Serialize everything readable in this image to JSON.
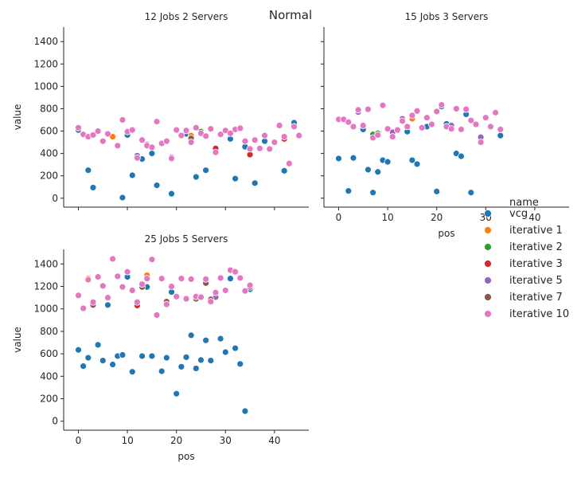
{
  "figure": {
    "suptitle": "Normal"
  },
  "legend": {
    "title": "name",
    "entries": [
      {
        "name": "vcg",
        "color": "#1f77b4"
      },
      {
        "name": "iterative 1",
        "color": "#ff7f0e"
      },
      {
        "name": "iterative 2",
        "color": "#2ca02c"
      },
      {
        "name": "iterative 3",
        "color": "#d62728"
      },
      {
        "name": "iterative 5",
        "color": "#9467bd"
      },
      {
        "name": "iterative 7",
        "color": "#8c564b"
      },
      {
        "name": "iterative 10",
        "color": "#e377c2"
      }
    ]
  },
  "chart_data": [
    {
      "type": "scatter",
      "title": "12 Jobs 2 Servers",
      "xlabel": "",
      "ylabel": "value",
      "xlim": [
        -3,
        47
      ],
      "ylim": [
        -80,
        1530
      ],
      "xticks": [
        0,
        10,
        20,
        30,
        40
      ],
      "yticks": [
        0,
        200,
        400,
        600,
        800,
        1000,
        1200,
        1400
      ],
      "show_xticklabels": false,
      "show_yticklabels": true,
      "series": [
        {
          "name": "vcg",
          "x": [
            0,
            2,
            3,
            9,
            10,
            11,
            13,
            15,
            16,
            19,
            22,
            24,
            26,
            31,
            32,
            34,
            36,
            38,
            42,
            44
          ],
          "y": [
            610,
            250,
            95,
            5,
            565,
            205,
            350,
            400,
            115,
            40,
            575,
            190,
            250,
            530,
            175,
            460,
            135,
            510,
            245,
            675
          ]
        },
        {
          "name": "iterative 1",
          "x": [
            7,
            23
          ],
          "y": [
            550,
            560
          ]
        },
        {
          "name": "iterative 2",
          "x": [
            25
          ],
          "y": [
            595
          ]
        },
        {
          "name": "iterative 3",
          "x": [
            28,
            35,
            42
          ],
          "y": [
            445,
            390,
            530
          ]
        },
        {
          "name": "iterative 5",
          "x": [
            12,
            14,
            19,
            37
          ],
          "y": [
            380,
            480,
            365,
            440
          ]
        },
        {
          "name": "iterative 7",
          "x": [
            23
          ],
          "y": [
            535
          ]
        },
        {
          "name": "iterative 10",
          "x": [
            0,
            1,
            2,
            3,
            4,
            5,
            6,
            8,
            9,
            10,
            11,
            12,
            13,
            14,
            15,
            16,
            17,
            18,
            19,
            20,
            21,
            22,
            23,
            24,
            25,
            26,
            27,
            28,
            29,
            30,
            31,
            32,
            33,
            34,
            35,
            36,
            37,
            38,
            39,
            40,
            41,
            42,
            43,
            44,
            45
          ],
          "y": [
            630,
            570,
            550,
            565,
            600,
            510,
            575,
            470,
            700,
            595,
            610,
            360,
            520,
            470,
            455,
            685,
            490,
            510,
            355,
            610,
            560,
            605,
            500,
            630,
            580,
            555,
            620,
            410,
            570,
            605,
            580,
            615,
            625,
            510,
            440,
            520,
            445,
            560,
            440,
            500,
            650,
            550,
            310,
            640,
            560
          ]
        }
      ]
    },
    {
      "type": "scatter",
      "title": "15 Jobs 3 Servers",
      "xlabel": "pos",
      "ylabel": "",
      "xlim": [
        -3,
        47
      ],
      "ylim": [
        -80,
        1530
      ],
      "xticks": [
        0,
        10,
        20,
        30,
        40
      ],
      "yticks": [
        0,
        200,
        400,
        600,
        800,
        1000,
        1200,
        1400
      ],
      "show_xticklabels": true,
      "show_yticklabels": false,
      "series": [
        {
          "name": "vcg",
          "x": [
            0,
            2,
            3,
            5,
            6,
            7,
            8,
            9,
            10,
            14,
            15,
            16,
            18,
            20,
            21,
            22,
            24,
            25,
            26,
            27,
            29,
            33
          ],
          "y": [
            355,
            65,
            360,
            615,
            255,
            50,
            235,
            340,
            325,
            595,
            340,
            305,
            640,
            60,
            820,
            665,
            400,
            375,
            750,
            50,
            530,
            560
          ]
        },
        {
          "name": "iterative 1",
          "x": [
            15
          ],
          "y": [
            710
          ]
        },
        {
          "name": "iterative 2",
          "x": [
            7,
            8
          ],
          "y": [
            570,
            580
          ]
        },
        {
          "name": "iterative 5",
          "x": [
            4,
            11,
            13,
            23,
            29
          ],
          "y": [
            770,
            590,
            710,
            650,
            545
          ]
        },
        {
          "name": "iterative 10",
          "x": [
            0,
            1,
            2,
            3,
            4,
            5,
            6,
            7,
            8,
            9,
            10,
            11,
            12,
            13,
            14,
            15,
            16,
            17,
            18,
            19,
            20,
            21,
            22,
            23,
            24,
            25,
            26,
            27,
            28,
            29,
            30,
            31,
            32,
            33
          ],
          "y": [
            705,
            705,
            680,
            640,
            790,
            650,
            795,
            540,
            565,
            830,
            620,
            550,
            610,
            690,
            640,
            740,
            780,
            630,
            720,
            660,
            775,
            835,
            640,
            620,
            800,
            615,
            795,
            695,
            660,
            500,
            720,
            640,
            765,
            615
          ]
        }
      ]
    },
    {
      "type": "scatter",
      "title": "25 Jobs 5 Servers",
      "xlabel": "pos",
      "ylabel": "value",
      "xlim": [
        -3,
        47
      ],
      "ylim": [
        -80,
        1530
      ],
      "xticks": [
        0,
        10,
        20,
        30,
        40
      ],
      "yticks": [
        0,
        200,
        400,
        600,
        800,
        1000,
        1200,
        1400
      ],
      "show_xticklabels": true,
      "show_yticklabels": true,
      "series": [
        {
          "name": "vcg",
          "x": [
            0,
            1,
            2,
            4,
            5,
            6,
            7,
            8,
            9,
            10,
            11,
            13,
            14,
            15,
            17,
            18,
            19,
            20,
            21,
            22,
            23,
            24,
            25,
            26,
            27,
            29,
            30,
            31,
            32,
            33,
            34,
            35
          ],
          "y": [
            635,
            490,
            565,
            680,
            540,
            1035,
            505,
            580,
            590,
            1285,
            440,
            580,
            1195,
            580,
            445,
            565,
            1150,
            245,
            485,
            570,
            765,
            470,
            545,
            720,
            540,
            735,
            615,
            1270,
            650,
            510,
            90,
            1175
          ]
        },
        {
          "name": "iterative 1",
          "x": [
            2,
            14
          ],
          "y": [
            1270,
            1300
          ]
        },
        {
          "name": "iterative 3",
          "x": [
            12
          ],
          "y": [
            1030
          ]
        },
        {
          "name": "iterative 5",
          "x": [
            28
          ],
          "y": [
            1105
          ]
        },
        {
          "name": "iterative 7",
          "x": [
            3,
            13,
            18,
            24,
            26,
            27,
            35
          ],
          "y": [
            1035,
            1195,
            1065,
            1090,
            1230,
            1085,
            1195
          ]
        },
        {
          "name": "iterative 10",
          "x": [
            0,
            1,
            2,
            3,
            4,
            5,
            6,
            7,
            8,
            9,
            10,
            11,
            12,
            13,
            14,
            15,
            16,
            17,
            18,
            19,
            20,
            21,
            22,
            23,
            24,
            25,
            26,
            27,
            28,
            29,
            30,
            31,
            32,
            33,
            34,
            35
          ],
          "y": [
            1120,
            1005,
            1260,
            1060,
            1285,
            1205,
            1100,
            1445,
            1290,
            1195,
            1330,
            1165,
            1060,
            1220,
            1270,
            1440,
            945,
            1270,
            1040,
            1200,
            1110,
            1270,
            1090,
            1265,
            1110,
            1105,
            1265,
            1065,
            1145,
            1275,
            1165,
            1345,
            1330,
            1275,
            1160,
            1210
          ]
        }
      ]
    }
  ]
}
